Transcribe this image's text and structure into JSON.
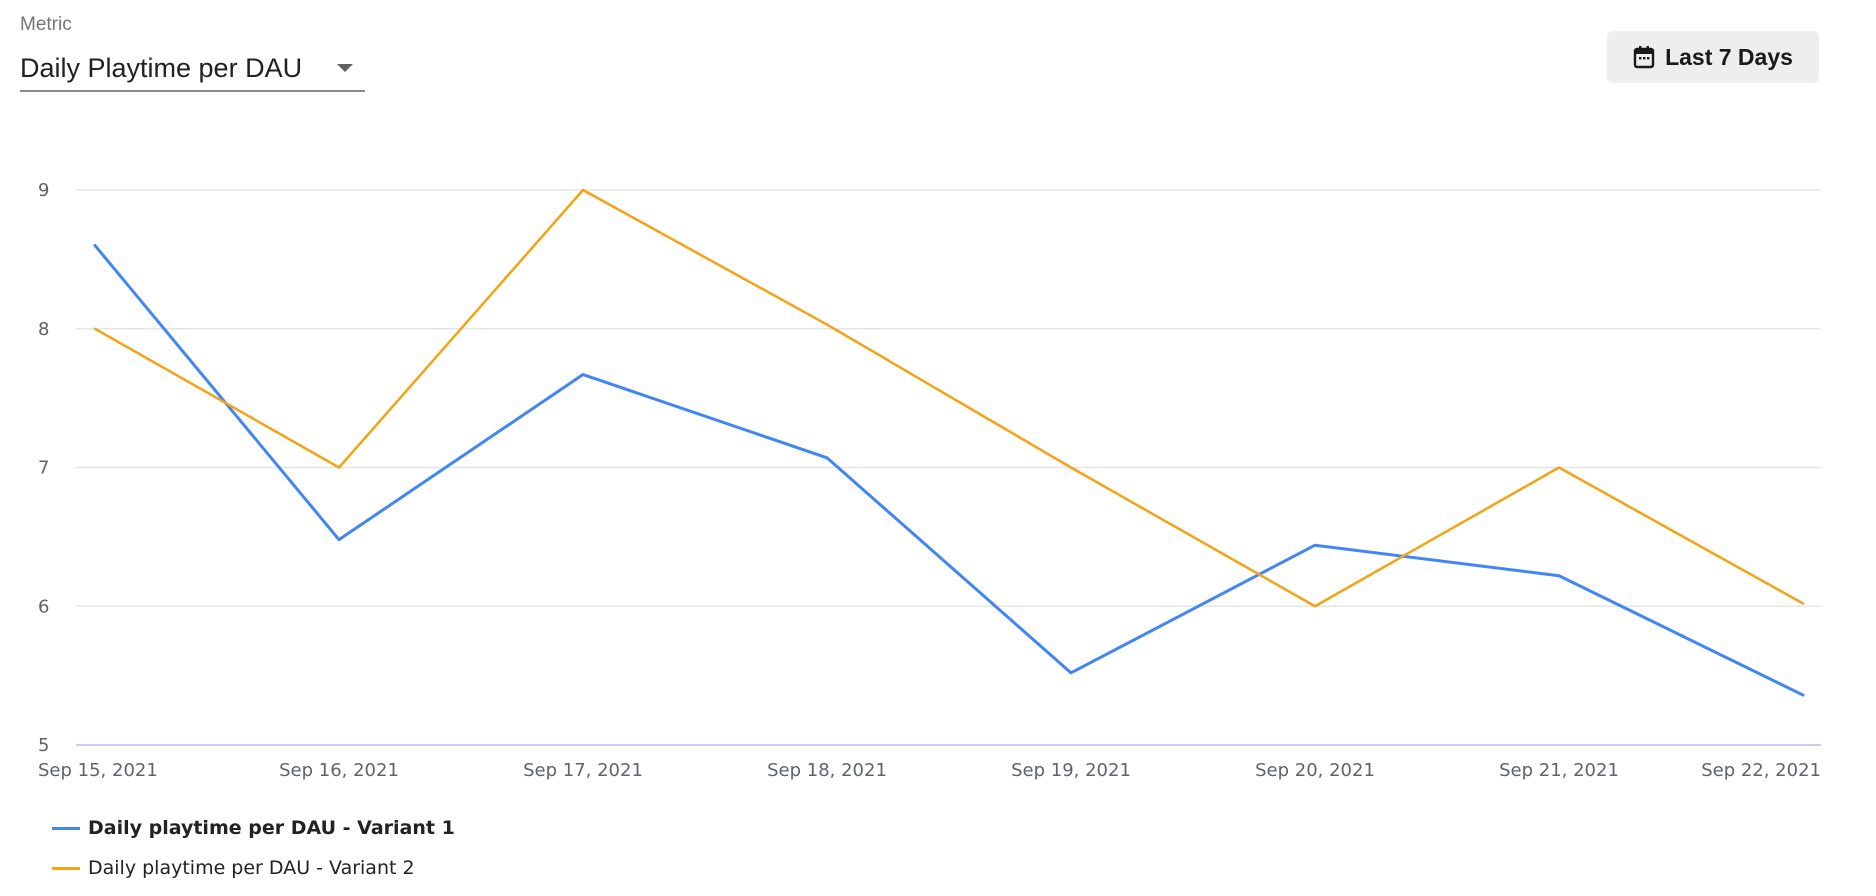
{
  "metric": {
    "label": "Metric",
    "value": "Daily Playtime per DAU"
  },
  "date_range": {
    "label": "Last 7 Days",
    "icon": "calendar-icon"
  },
  "colors": {
    "variant1": "#4285f4",
    "variant2": "#f4a314",
    "grid": "#e6e6e6",
    "baseline": "#c9cdf2"
  },
  "chart_data": {
    "type": "line",
    "title": "",
    "xlabel": "",
    "ylabel": "",
    "categories": [
      "Sep 15, 2021",
      "Sep 16, 2021",
      "Sep 17, 2021",
      "Sep 18, 2021",
      "Sep 19, 2021",
      "Sep 20, 2021",
      "Sep 21, 2021",
      "Sep 22, 2021"
    ],
    "yticks": [
      5,
      6,
      7,
      8,
      9
    ],
    "ylim": [
      5,
      9
    ],
    "grid": true,
    "legend_position": "bottom-left",
    "series": [
      {
        "name": "Daily playtime per DAU - Variant 1",
        "color": "#4285f4",
        "values": [
          8.6,
          6.48,
          7.67,
          7.07,
          5.52,
          6.44,
          6.22,
          5.36
        ]
      },
      {
        "name": "Daily playtime per DAU - Variant 2",
        "color": "#f4a314",
        "values": [
          8.0,
          7.0,
          9.0,
          8.03,
          7.0,
          6.0,
          7.0,
          6.02
        ]
      }
    ]
  }
}
